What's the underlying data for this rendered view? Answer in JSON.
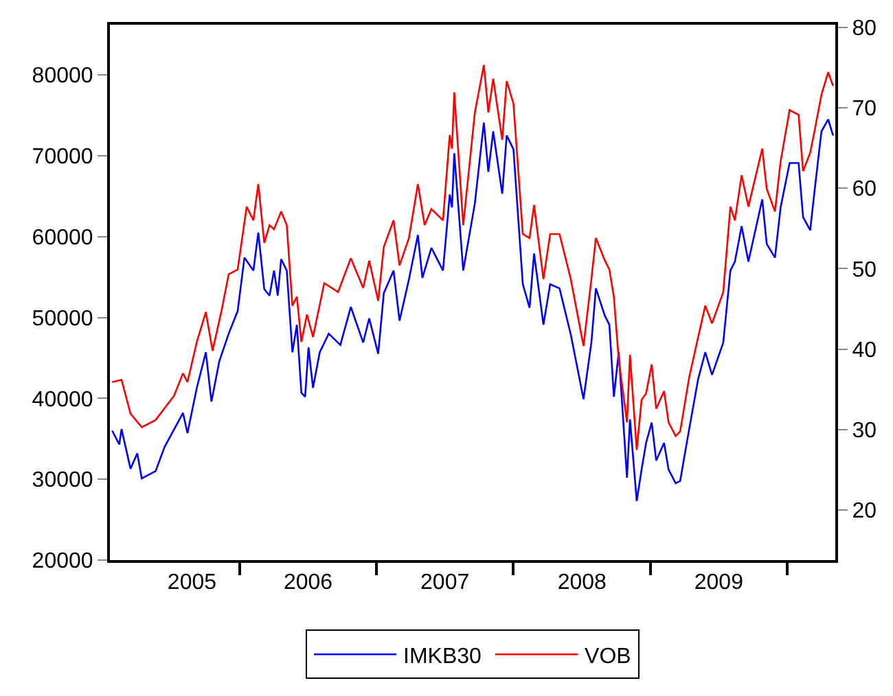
{
  "chart_data": {
    "type": "line",
    "series": [
      {
        "name": "IMKB30",
        "color": "#0000ff",
        "axis": "y",
        "x": [
          "2005-01-25",
          "2005-02-13",
          "2005-02-19",
          "2005-03-15",
          "2005-04-02",
          "2005-04-14",
          "2005-05-21",
          "2005-06-14",
          "2005-08-02",
          "2005-08-14",
          "2005-09-08",
          "2005-10-02",
          "2005-10-17",
          "2005-11-07",
          "2005-12-02",
          "2005-12-26",
          "2006-01-13",
          "2006-02-06",
          "2006-02-19",
          "2006-03-07",
          "2006-03-21",
          "2006-04-02",
          "2006-04-12",
          "2006-04-21",
          "2006-05-06",
          "2006-05-21",
          "2006-06-02",
          "2006-06-14",
          "2006-06-24",
          "2006-07-03",
          "2006-07-15",
          "2006-08-02",
          "2006-08-26",
          "2006-09-26",
          "2006-10-24",
          "2006-11-26",
          "2006-12-12",
          "2007-01-05",
          "2007-01-20",
          "2007-02-15",
          "2007-03-03",
          "2007-03-28",
          "2007-04-21",
          "2007-05-03",
          "2007-05-27",
          "2007-06-27",
          "2007-07-15",
          "2007-07-21",
          "2007-07-27",
          "2007-08-20",
          "2007-09-20",
          "2007-10-14",
          "2007-10-26",
          "2007-11-08",
          "2007-12-02",
          "2007-12-14",
          "2008-01-01",
          "2008-01-26",
          "2008-02-13",
          "2008-02-25",
          "2008-03-21",
          "2008-04-08",
          "2008-05-03",
          "2008-06-02",
          "2008-07-06",
          "2008-07-27",
          "2008-08-08",
          "2008-09-01",
          "2008-09-13",
          "2008-09-25",
          "2008-10-08",
          "2008-10-30",
          "2008-11-07",
          "2008-11-25",
          "2008-12-08",
          "2008-12-20",
          "2009-01-04",
          "2009-01-16",
          "2009-02-06",
          "2009-02-18",
          "2009-03-09",
          "2009-03-21",
          "2009-04-14",
          "2009-05-08",
          "2009-05-27",
          "2009-06-14",
          "2009-07-14",
          "2009-08-02",
          "2009-08-14",
          "2009-09-01",
          "2009-09-19",
          "2009-10-26",
          "2009-11-07",
          "2009-11-29",
          "2009-12-14",
          "2010-01-07",
          "2010-01-31",
          "2010-02-12",
          "2010-03-03",
          "2010-03-15",
          "2010-04-02",
          "2010-04-20",
          "2010-05-03"
        ],
        "values": [
          36000,
          34300,
          36200,
          31300,
          33200,
          30100,
          31000,
          34000,
          38200,
          35700,
          41300,
          45700,
          39600,
          44600,
          48000,
          50800,
          57400,
          55800,
          60500,
          53500,
          52700,
          55800,
          52700,
          57200,
          55800,
          45700,
          49100,
          40700,
          40200,
          46300,
          41300,
          45700,
          48000,
          46600,
          51300,
          46900,
          49900,
          45500,
          53000,
          55800,
          49600,
          54700,
          60200,
          54900,
          58600,
          55800,
          65200,
          63600,
          70300,
          55800,
          64100,
          74100,
          68000,
          73000,
          65300,
          72500,
          70800,
          54100,
          51200,
          57900,
          49100,
          54100,
          53600,
          47900,
          39900,
          46900,
          53600,
          50200,
          49100,
          40200,
          45700,
          30200,
          37400,
          27300,
          31200,
          34500,
          37000,
          32300,
          34500,
          31200,
          29500,
          29800,
          36200,
          42400,
          45700,
          42900,
          46900,
          55800,
          56900,
          61300,
          56900,
          64600,
          59100,
          57400,
          63600,
          69100,
          69100,
          62400,
          60800,
          65800,
          73000,
          74500,
          72500
        ]
      },
      {
        "name": "VOB",
        "color": "#ff0000",
        "axis": "y2",
        "x": [
          "2005-01-25",
          "2005-02-19",
          "2005-03-15",
          "2005-04-14",
          "2005-05-21",
          "2005-07-09",
          "2005-08-02",
          "2005-08-14",
          "2005-09-08",
          "2005-10-02",
          "2005-10-20",
          "2005-11-13",
          "2005-12-02",
          "2005-12-26",
          "2006-01-19",
          "2006-02-06",
          "2006-02-19",
          "2006-03-07",
          "2006-03-21",
          "2006-04-02",
          "2006-04-21",
          "2006-05-06",
          "2006-05-21",
          "2006-06-02",
          "2006-06-14",
          "2006-06-29",
          "2006-07-15",
          "2006-08-14",
          "2006-09-20",
          "2006-10-24",
          "2006-11-26",
          "2006-12-12",
          "2007-01-05",
          "2007-01-20",
          "2007-02-15",
          "2007-03-03",
          "2007-03-28",
          "2007-04-21",
          "2007-05-09",
          "2007-05-27",
          "2007-06-27",
          "2007-07-15",
          "2007-07-21",
          "2007-07-27",
          "2007-08-20",
          "2007-09-20",
          "2007-10-14",
          "2007-10-26",
          "2007-11-08",
          "2007-12-02",
          "2007-12-14",
          "2008-01-01",
          "2008-01-26",
          "2008-02-13",
          "2008-02-25",
          "2008-03-21",
          "2008-04-08",
          "2008-05-03",
          "2008-06-02",
          "2008-07-06",
          "2008-07-27",
          "2008-08-08",
          "2008-09-01",
          "2008-09-13",
          "2008-09-25",
          "2008-10-08",
          "2008-10-30",
          "2008-11-07",
          "2008-11-25",
          "2008-12-08",
          "2008-12-20",
          "2009-01-04",
          "2009-01-16",
          "2009-02-06",
          "2009-02-18",
          "2009-03-09",
          "2009-03-21",
          "2009-04-14",
          "2009-05-08",
          "2009-05-27",
          "2009-06-14",
          "2009-07-14",
          "2009-08-02",
          "2009-08-14",
          "2009-09-01",
          "2009-09-19",
          "2009-10-26",
          "2009-11-07",
          "2009-11-29",
          "2009-12-14",
          "2010-01-07",
          "2010-01-31",
          "2010-02-12",
          "2010-03-03",
          "2010-03-15",
          "2010-04-02",
          "2010-04-20",
          "2010-05-03"
        ],
        "values": [
          35.9,
          36.2,
          32.0,
          30.3,
          31.2,
          34.2,
          37.0,
          35.9,
          40.9,
          44.6,
          39.8,
          44.8,
          49.3,
          49.9,
          57.7,
          56.0,
          60.5,
          53.2,
          55.4,
          54.9,
          57.1,
          55.4,
          45.4,
          46.5,
          40.9,
          44.3,
          41.5,
          48.2,
          47.1,
          51.3,
          47.6,
          51.0,
          46.0,
          52.7,
          56.0,
          50.4,
          53.8,
          60.5,
          55.4,
          57.4,
          56.0,
          66.6,
          64.9,
          71.9,
          55.4,
          69.4,
          75.3,
          69.4,
          73.6,
          66.0,
          73.3,
          70.5,
          54.3,
          53.8,
          57.9,
          48.7,
          54.3,
          54.3,
          48.7,
          40.4,
          48.7,
          53.8,
          51.0,
          49.9,
          46.5,
          38.7,
          30.9,
          39.3,
          27.5,
          33.7,
          34.5,
          38.1,
          32.6,
          34.8,
          30.9,
          29.2,
          29.8,
          36.5,
          41.5,
          45.4,
          43.2,
          47.1,
          57.7,
          56.0,
          61.6,
          57.7,
          64.9,
          59.9,
          57.1,
          63.3,
          69.7,
          69.1,
          62.1,
          64.4,
          67.2,
          71.6,
          74.4,
          72.7
        ]
      }
    ],
    "xlim": [
      "2005-01-19",
      "2010-05-09"
    ],
    "xticks": [
      {
        "value": "2005-08-26",
        "label": "2005"
      },
      {
        "value": "2006-07-02",
        "label": "2006"
      },
      {
        "value": "2007-07-02",
        "label": "2007"
      },
      {
        "value": "2008-07-02",
        "label": "2008"
      },
      {
        "value": "2009-07-02",
        "label": "2009"
      },
      {
        "value": "2006-01-01",
        "label": null
      },
      {
        "value": "2007-01-01",
        "label": null
      },
      {
        "value": "2008-01-01",
        "label": null
      },
      {
        "value": "2009-01-01",
        "label": null
      },
      {
        "value": "2010-01-01",
        "label": null
      }
    ],
    "ylim": [
      20000,
      86200
    ],
    "yticks": [
      20000,
      30000,
      40000,
      50000,
      60000,
      70000,
      80000
    ],
    "y2lim": [
      13.8,
      80.3
    ],
    "y2ticks": [
      20,
      30,
      40,
      50,
      60,
      70,
      80
    ],
    "legend": "bottom",
    "marker": "none",
    "line_style": "solid"
  }
}
